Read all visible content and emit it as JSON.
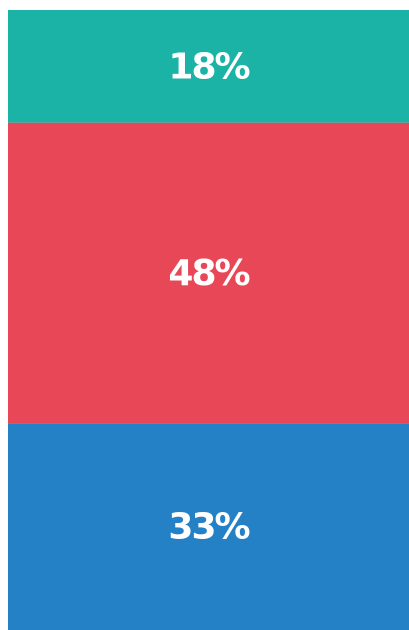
{
  "chart_data": {
    "type": "stacked-bar",
    "values": [
      18,
      48,
      33
    ],
    "value_labels": [
      "18%",
      "48%",
      "33%"
    ],
    "colors": [
      "#1ab3a6",
      "#e84757",
      "#2481c6"
    ]
  }
}
